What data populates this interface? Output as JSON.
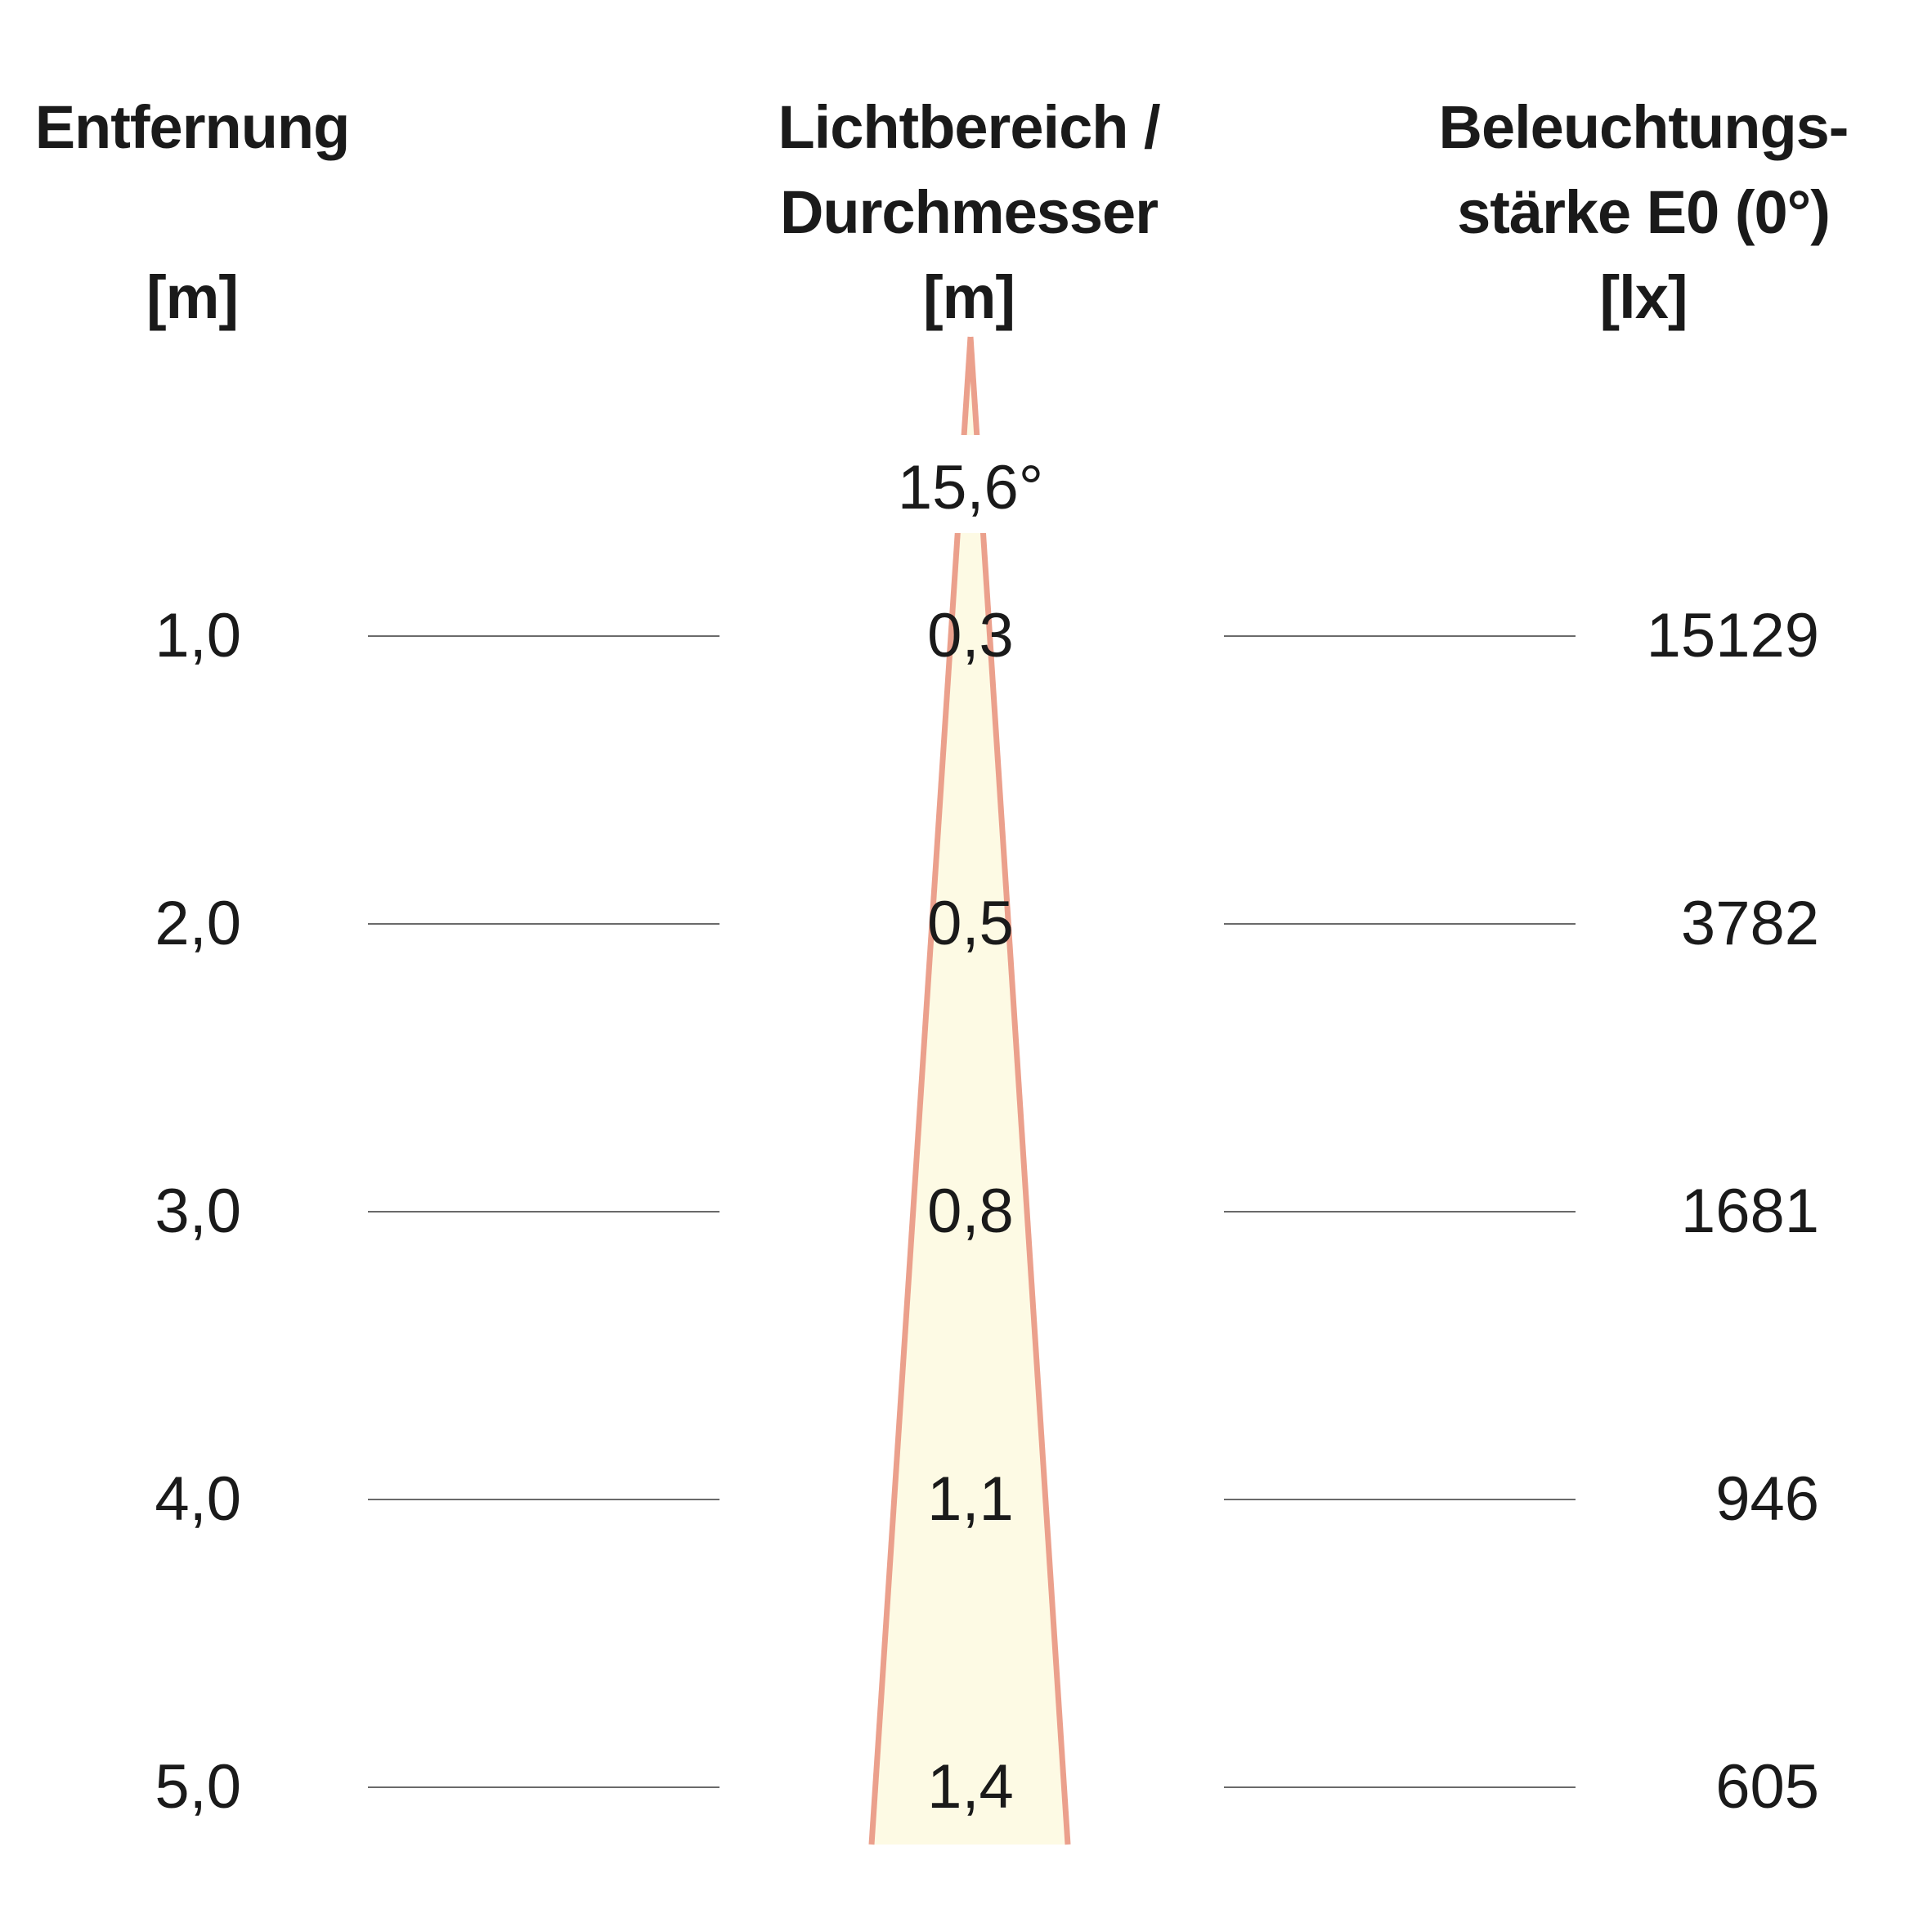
{
  "headers": {
    "distance": {
      "line1": "Entfernung",
      "unit": "[m]"
    },
    "diameter": {
      "line1": "Lichtbereich /",
      "line2": "Durchmesser",
      "unit": "[m]"
    },
    "illuminance": {
      "line1": "Beleuchtungs-",
      "line2": "stärke E0 (0°)",
      "unit": "[lx]"
    }
  },
  "beam_angle": "15,6°",
  "colors": {
    "beam_fill": "#fdfae4",
    "beam_stroke": "#eba08c",
    "rule": "#6a6a6a",
    "text": "#1a1a1a"
  },
  "chart_data": {
    "type": "table",
    "beam_angle_deg": 15.6,
    "rows": [
      {
        "distance": "1,0",
        "diameter": "0,3",
        "illuminance": "15129"
      },
      {
        "distance": "2,0",
        "diameter": "0,5",
        "illuminance": "3782"
      },
      {
        "distance": "3,0",
        "diameter": "0,8",
        "illuminance": "1681"
      },
      {
        "distance": "4,0",
        "diameter": "1,1",
        "illuminance": "946"
      },
      {
        "distance": "5,0",
        "diameter": "1,4",
        "illuminance": "605"
      }
    ]
  }
}
